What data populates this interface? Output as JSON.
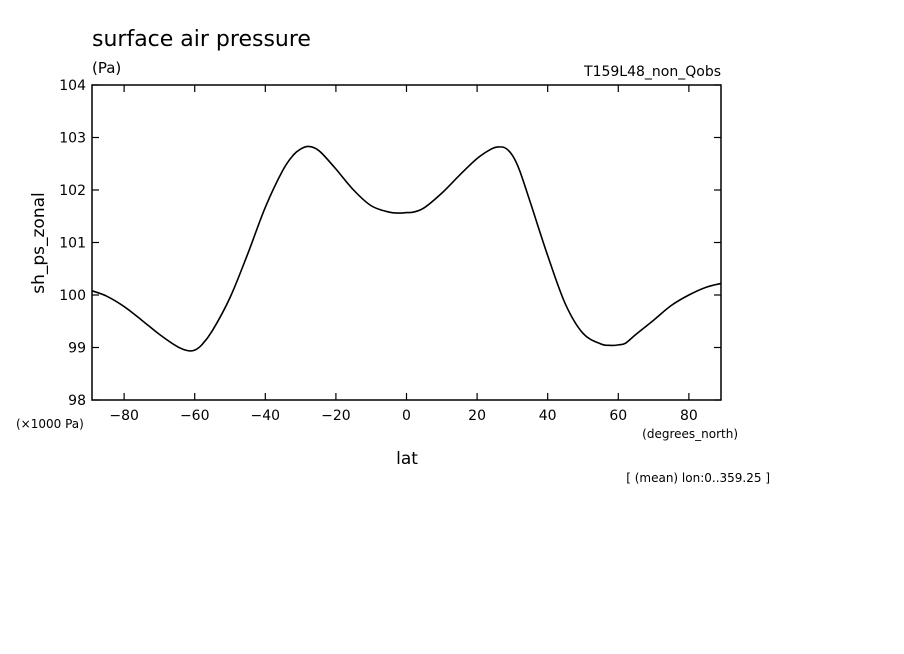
{
  "chart_data": {
    "type": "line",
    "title": "surface air pressure",
    "units": "(Pa)",
    "run_label": "T159L48_non_Qobs",
    "ylabel": "sh_ps_zonal",
    "y_scale_note": "(×1000 Pa)",
    "xlabel": "lat",
    "x_units": "(degrees_north)",
    "footnote": "[ (mean) lon:0..359.25 ]",
    "xlim": [
      -89.1,
      89.1
    ],
    "ylim": [
      98,
      104
    ],
    "x_ticks": [
      -80,
      -60,
      -40,
      -20,
      0,
      20,
      40,
      60,
      80
    ],
    "x_tick_labels": [
      "-80",
      "-60",
      "-40",
      "-20",
      "0",
      "20",
      "40",
      "60",
      "80"
    ],
    "y_ticks": [
      98,
      99,
      100,
      101,
      102,
      103,
      104
    ],
    "y_tick_labels": [
      "98",
      "99",
      "100",
      "101",
      "102",
      "103",
      "104"
    ],
    "grid": false,
    "series": [
      {
        "x": [
          -89.1,
          -85,
          -80,
          -75,
          -70,
          -65,
          -62,
          -60,
          -58,
          -55,
          -50,
          -45,
          -40,
          -35,
          -32,
          -30,
          -28,
          -26,
          -24,
          -20,
          -15,
          -10,
          -5,
          -2,
          0,
          2,
          5,
          10,
          15,
          20,
          24,
          26,
          28,
          30,
          32,
          35,
          40,
          45,
          50,
          55,
          58,
          60,
          62,
          65,
          70,
          75,
          80,
          85,
          89.1
        ],
        "y": [
          100.08,
          99.98,
          99.78,
          99.52,
          99.25,
          99.02,
          98.94,
          98.95,
          99.05,
          99.32,
          99.95,
          100.78,
          101.67,
          102.38,
          102.67,
          102.78,
          102.83,
          102.8,
          102.7,
          102.4,
          102.0,
          101.7,
          101.58,
          101.56,
          101.57,
          101.58,
          101.66,
          101.94,
          102.28,
          102.6,
          102.78,
          102.82,
          102.8,
          102.66,
          102.38,
          101.78,
          100.75,
          99.83,
          99.27,
          99.07,
          99.04,
          99.05,
          99.08,
          99.25,
          99.52,
          99.8,
          100.0,
          100.15,
          100.22
        ]
      }
    ]
  }
}
